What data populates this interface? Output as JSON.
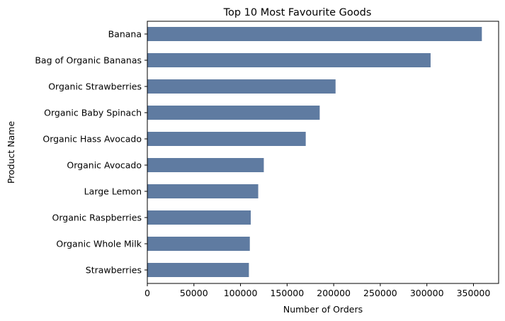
{
  "chart_data": {
    "type": "bar",
    "orientation": "horizontal",
    "title": "Top 10 Most Favourite Goods",
    "xlabel": "Number of Orders",
    "ylabel": "Product Name",
    "xlim": [
      0,
      377000
    ],
    "xticks": [
      0,
      50000,
      100000,
      150000,
      200000,
      250000,
      300000,
      350000
    ],
    "grid": false,
    "bar_color": "#5f7ba1",
    "categories": [
      "Banana",
      "Bag of Organic Bananas",
      "Organic Strawberries",
      "Organic Baby Spinach",
      "Organic Hass Avocado",
      "Organic Avocado",
      "Large Lemon",
      "Organic Raspberries",
      "Organic Whole Milk",
      "Strawberries"
    ],
    "values": [
      359000,
      304000,
      202000,
      185000,
      170000,
      125000,
      119000,
      111000,
      110000,
      109000
    ]
  }
}
